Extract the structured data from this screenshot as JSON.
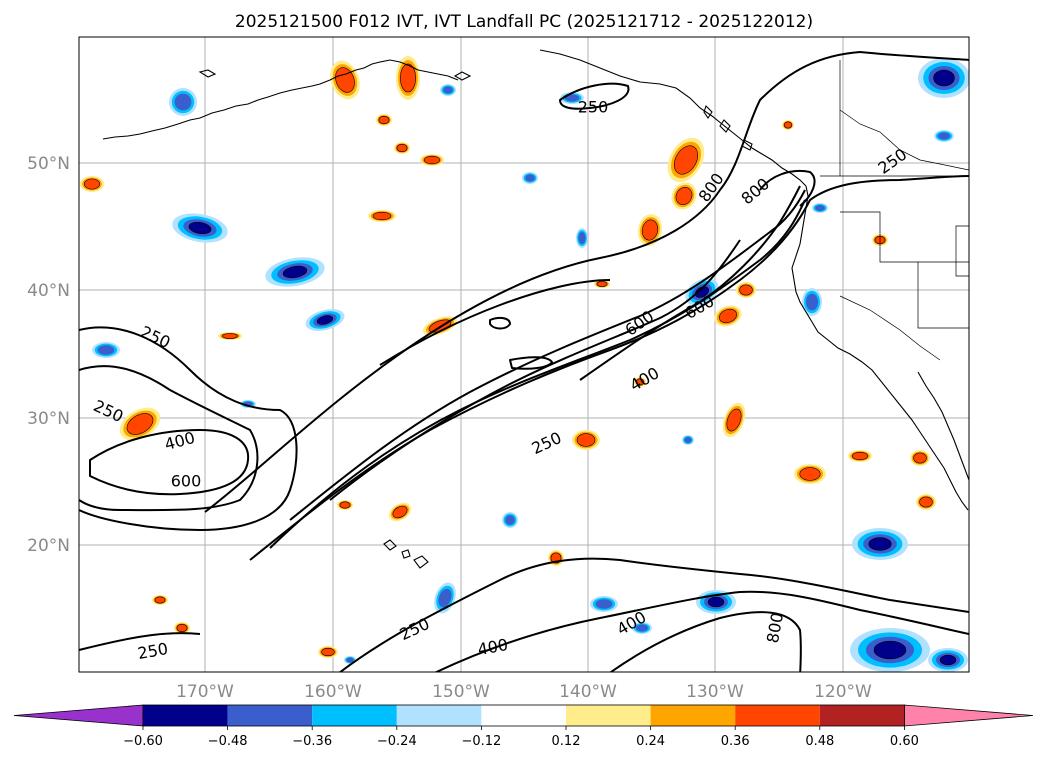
{
  "title": "2025121500 F012 IVT, IVT Landfall PC (2025121712 - 2025122012)",
  "lat_labels": [
    "50°N",
    "40°N",
    "30°N",
    "20°N"
  ],
  "lon_labels": [
    "170°W",
    "160°W",
    "150°W",
    "140°W",
    "130°W",
    "120°W"
  ],
  "colorbar": {
    "ticks": [
      "−0.60",
      "−0.48",
      "−0.36",
      "−0.24",
      "−0.12",
      "0.12",
      "0.24",
      "0.36",
      "0.48",
      "0.60"
    ],
    "colors": [
      "#9932cc",
      "#00008b",
      "#3a5fcd",
      "#00bfff",
      "#b0e2ff",
      "#ffffff",
      "#ffec8b",
      "#ffa500",
      "#ff4500",
      "#b22222",
      "#ff82ab"
    ]
  },
  "contour_labels": [
    "250",
    "250",
    "250",
    "400",
    "600",
    "250",
    "400",
    "600",
    "800",
    "600",
    "800",
    "250",
    "400",
    "400",
    "250",
    "250",
    "800"
  ],
  "colors": {
    "pos_strong": "#ff4500",
    "pos_mid": "#ffa500",
    "pos_weak": "#ffec8b",
    "neg_strong": "#00008b",
    "neg_mid": "#3a5fcd",
    "neg_weak": "#00bfff",
    "neg_faint": "#b0e2ff",
    "grid": "#b0b0b0"
  }
}
